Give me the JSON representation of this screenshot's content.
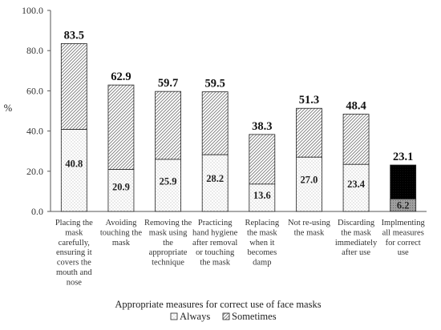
{
  "chart_data": {
    "type": "bar",
    "stacked": true,
    "xlabel": "Appropriate measures for correct use of face masks",
    "ylabel": "%",
    "ylim": [
      0,
      100
    ],
    "yticks": [
      "0.0",
      "20.0",
      "40.0",
      "60.0",
      "80.0",
      "100.0"
    ],
    "categories": [
      [
        "Placing the",
        "mask",
        "carefully,",
        "ensuring it",
        "covers the",
        "mouth and",
        "nose"
      ],
      [
        "Avoiding",
        "touching the",
        "mask"
      ],
      [
        "Removing the",
        "mask using",
        "the",
        "appropriate",
        "technique"
      ],
      [
        "Practicing",
        "hand hygiene",
        "after removal",
        "or touching",
        "the mask"
      ],
      [
        "Replacing",
        "the mask",
        "when it",
        "becomes",
        "damp"
      ],
      [
        "Not re-using",
        "the mask"
      ],
      [
        "Discarding",
        "the mask",
        "immediately",
        "after use"
      ],
      [
        "Implmenting",
        "all measures",
        "for correct",
        "use"
      ]
    ],
    "series": [
      {
        "name": "Always",
        "values": [
          40.8,
          20.9,
          25.9,
          28.2,
          13.6,
          27.0,
          23.4,
          6.2
        ],
        "labels": [
          "40.8",
          "20.9",
          "25.9",
          "28.2",
          "13.6",
          "27.0",
          "23.4",
          "6.2"
        ]
      }
    ],
    "totals": [
      83.5,
      62.9,
      59.7,
      59.5,
      38.3,
      51.3,
      48.4,
      23.1
    ],
    "total_labels": [
      "83.5",
      "62.9",
      "59.7",
      "59.5",
      "38.3",
      "51.3",
      "48.4",
      "23.1"
    ],
    "legend": [
      {
        "name": "Always",
        "pattern": "dots"
      },
      {
        "name": "Sometimes",
        "pattern": "diag"
      }
    ],
    "legend_position": "bottom",
    "grid": false,
    "highlight_last_bar": true,
    "colors": {
      "bar_edge": "#222222",
      "dot": "#9a9a9a",
      "hatch": "#7a7a7a",
      "highlight_bottom": "#9e9e9e",
      "highlight_top": "#000000"
    }
  }
}
